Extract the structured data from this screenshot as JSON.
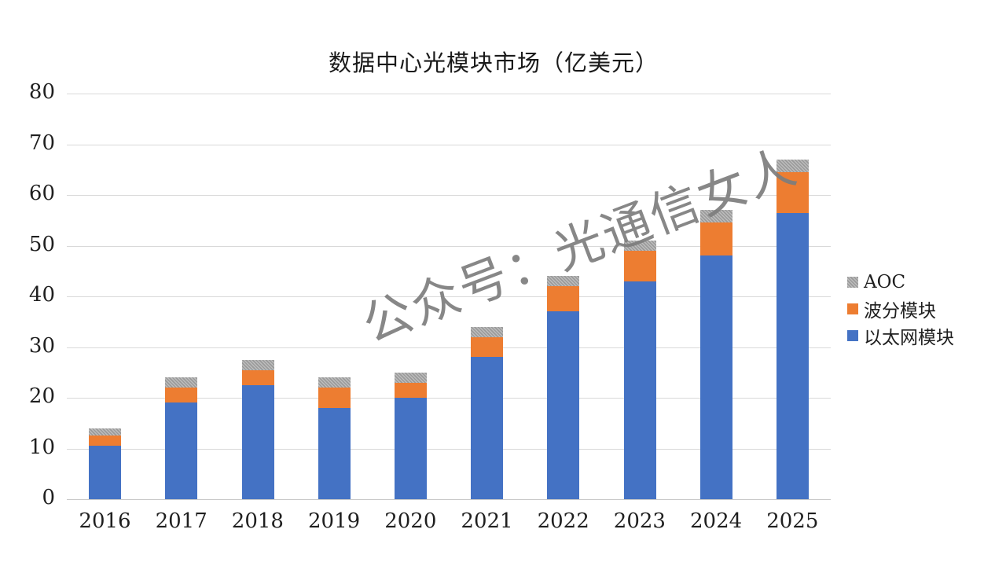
{
  "title": "数据中心光模块市场（亿美元）",
  "watermark": "公众号：光通信女人",
  "colors": {
    "ethernet": "#4472C4",
    "wdm": "#ED7D31",
    "aoc": "#ABABAB",
    "gridline": "#D9D9D9",
    "axis_text": "#1F1F1F",
    "watermark": "#7D7D7D"
  },
  "legend": {
    "items": [
      {
        "label": "AOC",
        "color": "#ABABAB",
        "hatched": true
      },
      {
        "label": "波分模块",
        "color": "#ED7D31",
        "hatched": false
      },
      {
        "label": "以太网模块",
        "color": "#4472C4",
        "hatched": false
      }
    ]
  },
  "chart_data": {
    "type": "bar",
    "stacked": true,
    "title": "数据中心光模块市场（亿美元）",
    "xlabel": "",
    "ylabel": "",
    "categories": [
      "2016",
      "2017",
      "2018",
      "2019",
      "2020",
      "2021",
      "2022",
      "2023",
      "2024",
      "2025"
    ],
    "series": [
      {
        "name": "以太网模块",
        "key": "ethernet",
        "color": "#4472C4",
        "values": [
          10.5,
          19,
          22.5,
          18,
          20,
          28,
          37,
          43,
          48,
          56.5
        ]
      },
      {
        "name": "波分模块",
        "key": "wdm",
        "color": "#ED7D31",
        "values": [
          2,
          3,
          3,
          4,
          3,
          4,
          5,
          6,
          6.5,
          8
        ]
      },
      {
        "name": "AOC",
        "key": "aoc",
        "color": "#ABABAB",
        "values": [
          1.5,
          2,
          2,
          2,
          2,
          2,
          2,
          2,
          2.5,
          2.5
        ]
      }
    ],
    "totals": [
      14,
      24,
      27.5,
      24,
      25,
      34,
      44,
      51,
      57,
      67
    ],
    "ylim": [
      0,
      80
    ],
    "yticks": [
      0,
      10,
      20,
      30,
      40,
      50,
      60,
      70,
      80
    ],
    "grid": true,
    "legend_position": "right",
    "legend_order_top_to_bottom": [
      "AOC",
      "波分模块",
      "以太网模块"
    ]
  }
}
